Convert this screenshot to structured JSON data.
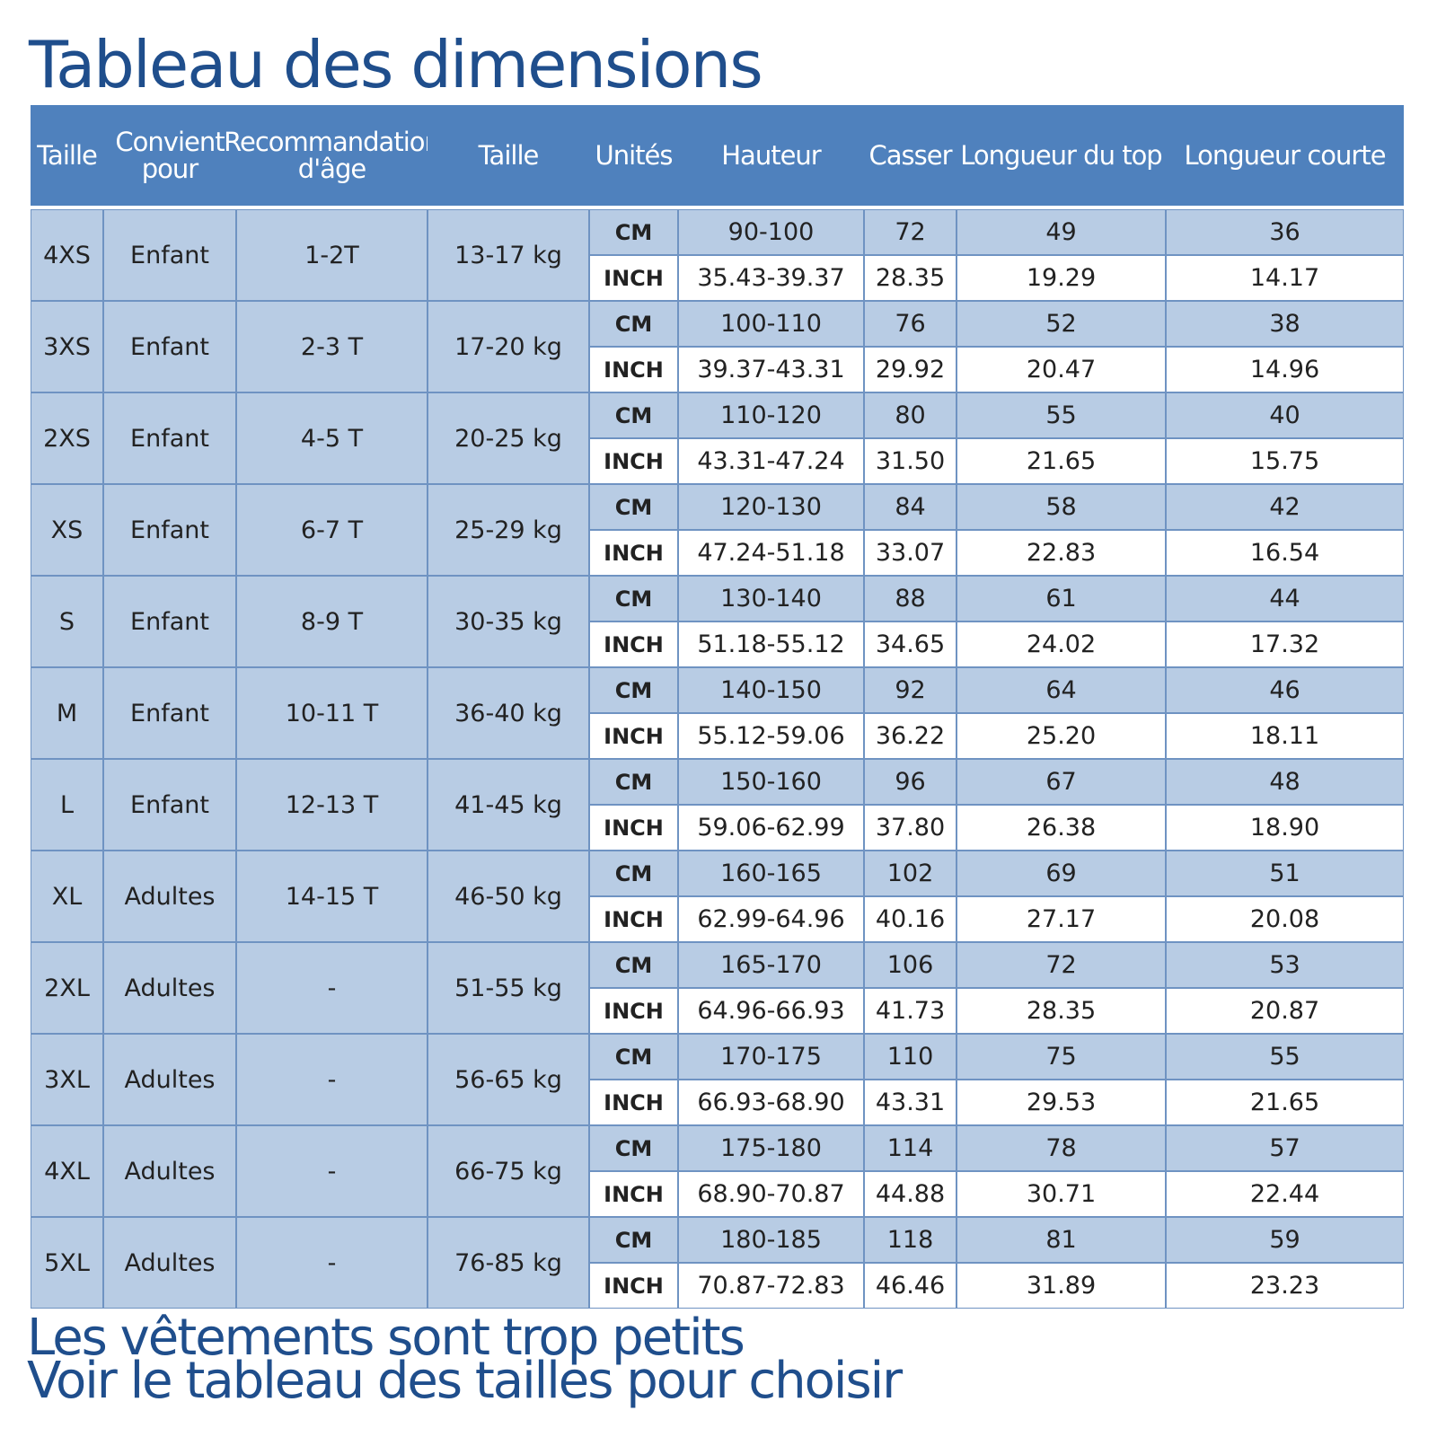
{
  "title": "Tableau des dimensions",
  "table": {
    "headers": [
      "Taille",
      "Convient pour",
      "Recommandation d'âge",
      "Taille",
      "Unités",
      "Hauteur",
      "Casser",
      "Longueur du top",
      "Longueur courte"
    ],
    "groups": [
      {
        "cells": [
          "4XS",
          "Enfant",
          "1-2T",
          "13-17 kg"
        ],
        "rows": [
          [
            "CM",
            "90-100",
            "72",
            "49",
            "36"
          ],
          [
            "INCH",
            "35.43-39.37",
            "28.35",
            "19.29",
            "14.17"
          ]
        ]
      },
      {
        "cells": [
          "3XS",
          "Enfant",
          "2-3 T",
          "17-20 kg"
        ],
        "rows": [
          [
            "CM",
            "100-110",
            "76",
            "52",
            "38"
          ],
          [
            "INCH",
            "39.37-43.31",
            "29.92",
            "20.47",
            "14.96"
          ]
        ]
      },
      {
        "cells": [
          "2XS",
          "Enfant",
          "4-5 T",
          "20-25 kg"
        ],
        "rows": [
          [
            "CM",
            "110-120",
            "80",
            "55",
            "40"
          ],
          [
            "INCH",
            "43.31-47.24",
            "31.50",
            "21.65",
            "15.75"
          ]
        ]
      },
      {
        "cells": [
          "XS",
          "Enfant",
          "6-7 T",
          "25-29 kg"
        ],
        "rows": [
          [
            "CM",
            "120-130",
            "84",
            "58",
            "42"
          ],
          [
            "INCH",
            "47.24-51.18",
            "33.07",
            "22.83",
            "16.54"
          ]
        ]
      },
      {
        "cells": [
          "S",
          "Enfant",
          "8-9 T",
          "30-35 kg"
        ],
        "rows": [
          [
            "CM",
            "130-140",
            "88",
            "61",
            "44"
          ],
          [
            "INCH",
            "51.18-55.12",
            "34.65",
            "24.02",
            "17.32"
          ]
        ]
      },
      {
        "cells": [
          "M",
          "Enfant",
          "10-11 T",
          "36-40 kg"
        ],
        "rows": [
          [
            "CM",
            "140-150",
            "92",
            "64",
            "46"
          ],
          [
            "INCH",
            "55.12-59.06",
            "36.22",
            "25.20",
            "18.11"
          ]
        ]
      },
      {
        "cells": [
          "L",
          "Enfant",
          "12-13 T",
          "41-45 kg"
        ],
        "rows": [
          [
            "CM",
            "150-160",
            "96",
            "67",
            "48"
          ],
          [
            "INCH",
            "59.06-62.99",
            "37.80",
            "26.38",
            "18.90"
          ]
        ]
      },
      {
        "cells": [
          "XL",
          "Adultes",
          "14-15 T",
          "46-50 kg"
        ],
        "rows": [
          [
            "CM",
            "160-165",
            "102",
            "69",
            "51"
          ],
          [
            "INCH",
            "62.99-64.96",
            "40.16",
            "27.17",
            "20.08"
          ]
        ]
      },
      {
        "cells": [
          "2XL",
          "Adultes",
          "-",
          "51-55 kg"
        ],
        "rows": [
          [
            "CM",
            "165-170",
            "106",
            "72",
            "53"
          ],
          [
            "INCH",
            "64.96-66.93",
            "41.73",
            "28.35",
            "20.87"
          ]
        ]
      },
      {
        "cells": [
          "3XL",
          "Adultes",
          "-",
          "56-65 kg"
        ],
        "rows": [
          [
            "CM",
            "170-175",
            "110",
            "75",
            "55"
          ],
          [
            "INCH",
            "66.93-68.90",
            "43.31",
            "29.53",
            "21.65"
          ]
        ]
      },
      {
        "cells": [
          "4XL",
          "Adultes",
          "-",
          "66-75 kg"
        ],
        "rows": [
          [
            "CM",
            "175-180",
            "114",
            "78",
            "57"
          ],
          [
            "INCH",
            "68.90-70.87",
            "44.88",
            "30.71",
            "22.44"
          ]
        ]
      },
      {
        "cells": [
          "5XL",
          "Adultes",
          "-",
          "76-85 kg"
        ],
        "rows": [
          [
            "CM",
            "180-185",
            "118",
            "81",
            "59"
          ],
          [
            "INCH",
            "70.87-72.83",
            "46.46",
            "31.89",
            "23.23"
          ]
        ]
      }
    ]
  },
  "footer": [
    "Les vêtements sont trop petits",
    "Voir le tableau des tailles pour choisir"
  ]
}
